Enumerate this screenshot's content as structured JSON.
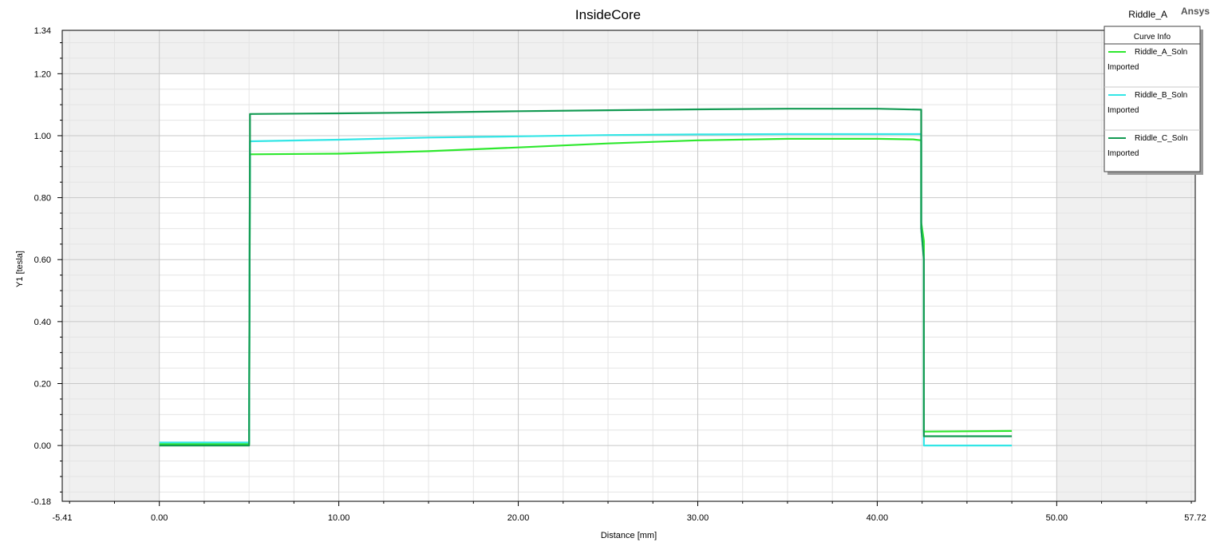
{
  "header": {
    "design_name": "Riddle_A",
    "brand": "Ansys"
  },
  "chart_data": {
    "type": "line",
    "title": "InsideCore",
    "xlabel": "Distance [mm]",
    "ylabel": "Y1 [tesla]",
    "xlim": [
      -5.41,
      57.72
    ],
    "ylim": [
      -0.18,
      1.34
    ],
    "x_ticks": [
      "-5.41",
      "0.00",
      "10.00",
      "20.00",
      "30.00",
      "40.00",
      "50.00",
      "57.72"
    ],
    "y_ticks": [
      "-0.18",
      "0.00",
      "0.20",
      "0.40",
      "0.60",
      "0.80",
      "1.00",
      "1.20",
      "1.34"
    ],
    "grid": true,
    "legend_title": "Curve Info",
    "legend_position": "top-right",
    "series": [
      {
        "name": "Riddle_A_Soln",
        "subtitle": "Imported",
        "color": "#2ee82e",
        "x": [
          0.0,
          5.0,
          5.0,
          5.05,
          5.05,
          10.0,
          15.0,
          20.0,
          25.0,
          30.0,
          35.0,
          40.0,
          42.0,
          42.45,
          42.45,
          42.6,
          42.6,
          47.5
        ],
        "y": [
          0.005,
          0.005,
          0.05,
          0.92,
          0.94,
          0.942,
          0.95,
          0.962,
          0.975,
          0.985,
          0.99,
          0.99,
          0.988,
          0.985,
          0.72,
          0.66,
          0.045,
          0.047
        ]
      },
      {
        "name": "Riddle_B_Soln",
        "subtitle": "Imported",
        "color": "#33e6e6",
        "x": [
          0.0,
          5.0,
          5.0,
          5.05,
          5.05,
          10.0,
          15.0,
          20.0,
          25.0,
          30.0,
          35.0,
          40.0,
          42.45,
          42.45,
          42.6,
          42.6,
          47.5
        ],
        "y": [
          0.01,
          0.01,
          0.05,
          0.95,
          0.982,
          0.987,
          0.994,
          0.998,
          1.002,
          1.004,
          1.005,
          1.005,
          1.005,
          0.7,
          0.6,
          0.0,
          0.0
        ]
      },
      {
        "name": "Riddle_C_Soln",
        "subtitle": "Imported",
        "color": "#129a52",
        "x": [
          0.0,
          5.0,
          5.0,
          5.05,
          5.05,
          10.0,
          15.0,
          20.0,
          25.0,
          30.0,
          35.0,
          40.0,
          42.45,
          42.45,
          42.6,
          42.6,
          47.5
        ],
        "y": [
          0.0,
          0.0,
          0.05,
          1.0,
          1.07,
          1.072,
          1.075,
          1.079,
          1.082,
          1.085,
          1.087,
          1.087,
          1.084,
          0.7,
          0.6,
          0.03,
          0.03
        ]
      }
    ]
  }
}
